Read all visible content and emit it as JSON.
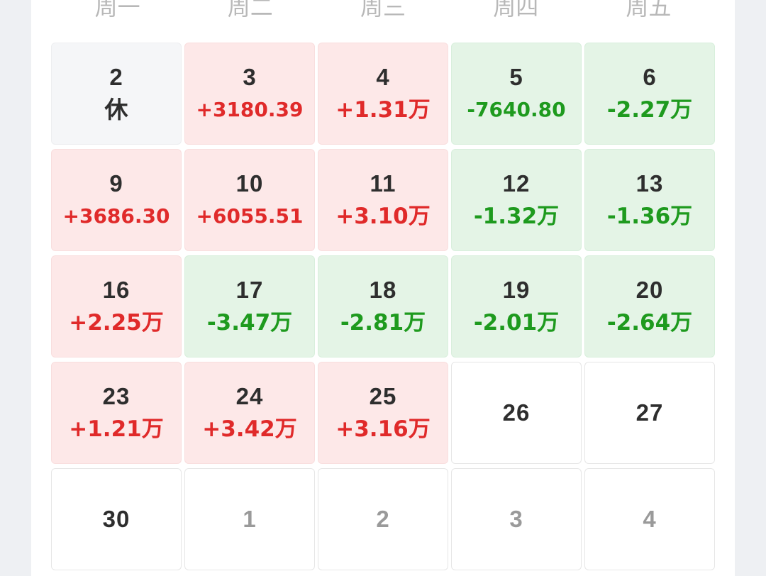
{
  "weekdays": [
    "周一",
    "周二",
    "周三",
    "周四",
    "周五"
  ],
  "weeks": [
    [
      {
        "day": "2",
        "value": "休",
        "type": "rest"
      },
      {
        "day": "3",
        "value": "+3180.39",
        "type": "up"
      },
      {
        "day": "4",
        "value": "+1.31万",
        "type": "up"
      },
      {
        "day": "5",
        "value": "-7640.80",
        "type": "down"
      },
      {
        "day": "6",
        "value": "-2.27万",
        "type": "down"
      }
    ],
    [
      {
        "day": "9",
        "value": "+3686.30",
        "type": "up"
      },
      {
        "day": "10",
        "value": "+6055.51",
        "type": "up"
      },
      {
        "day": "11",
        "value": "+3.10万",
        "type": "up"
      },
      {
        "day": "12",
        "value": "-1.32万",
        "type": "down"
      },
      {
        "day": "13",
        "value": "-1.36万",
        "type": "down"
      }
    ],
    [
      {
        "day": "16",
        "value": "+2.25万",
        "type": "up"
      },
      {
        "day": "17",
        "value": "-3.47万",
        "type": "down"
      },
      {
        "day": "18",
        "value": "-2.81万",
        "type": "down"
      },
      {
        "day": "19",
        "value": "-2.01万",
        "type": "down"
      },
      {
        "day": "20",
        "value": "-2.64万",
        "type": "down"
      }
    ],
    [
      {
        "day": "23",
        "value": "+1.21万",
        "type": "up"
      },
      {
        "day": "24",
        "value": "+3.42万",
        "type": "up"
      },
      {
        "day": "25",
        "value": "+3.16万",
        "type": "up"
      },
      {
        "day": "26",
        "value": "",
        "type": "plain"
      },
      {
        "day": "27",
        "value": "",
        "type": "plain"
      }
    ],
    [
      {
        "day": "30",
        "value": "",
        "type": "plain"
      },
      {
        "day": "1",
        "value": "",
        "type": "plain",
        "muted": true
      },
      {
        "day": "2",
        "value": "",
        "type": "plain",
        "muted": true
      },
      {
        "day": "3",
        "value": "",
        "type": "plain",
        "muted": true
      },
      {
        "day": "4",
        "value": "",
        "type": "plain",
        "muted": true
      }
    ]
  ],
  "colors": {
    "up_text": "#e02a2a",
    "down_text": "#1e9a1e",
    "up_bg": "#fde8e8",
    "down_bg": "#e4f4e6",
    "rest_bg": "#f5f6f8"
  }
}
